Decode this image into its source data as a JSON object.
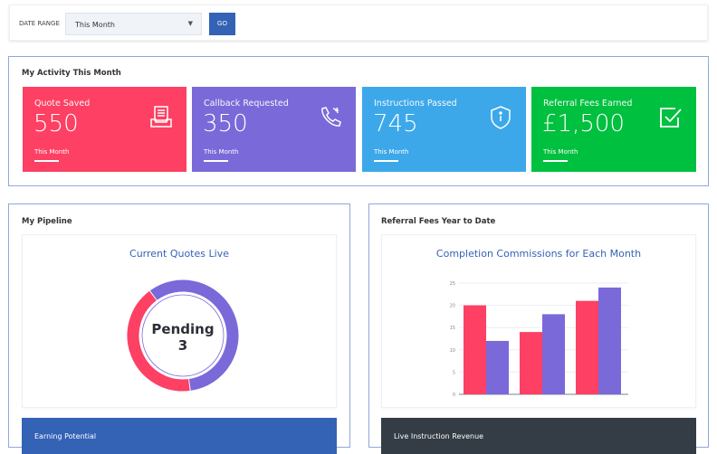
{
  "filter": {
    "label": "DATE RANGE",
    "selected": "This Month",
    "go_label": "GO"
  },
  "activity": {
    "title": "My Activity This Month",
    "cards": [
      {
        "label": "Quote Saved",
        "value": "550",
        "period": "This Month",
        "icon": "inbox-documents-icon",
        "color": "#fd4063"
      },
      {
        "label": "Callback Requested",
        "value": "350",
        "period": "This Month",
        "icon": "phone-callback-icon",
        "color": "#7a69d9"
      },
      {
        "label": "Instructions Passed",
        "value": "745",
        "period": "This Month",
        "icon": "shield-info-icon",
        "color": "#3ca8ea"
      },
      {
        "label": "Referral Fees Earned",
        "value": "£1,500",
        "period": "This Month",
        "icon": "checkbox-icon",
        "color": "#00c03f"
      }
    ]
  },
  "pipeline": {
    "title": "My Pipeline",
    "chart_title": "Current Quotes Live",
    "center_label": "Pending",
    "center_value": "3",
    "footer_label": "Earning Potential"
  },
  "referral": {
    "title": "Referral Fees Year to Date",
    "chart_title": "Completion Commissions for Each Month",
    "footer_label": "Live Instruction Revenue"
  },
  "chart_data": [
    {
      "type": "pie",
      "donut": true,
      "slices": [
        {
          "value": 58,
          "color": "#7a69d9"
        },
        {
          "value": 42,
          "color": "#fd4063"
        }
      ]
    },
    {
      "type": "bar",
      "categories": [
        "",
        "",
        ""
      ],
      "ylim": [
        0,
        25
      ],
      "yticks": [
        "0",
        "5",
        "10",
        "15",
        "20",
        "25"
      ],
      "grid": true,
      "series": [
        {
          "values": [
            20,
            14,
            21
          ],
          "color": "#fd4063"
        },
        {
          "values": [
            12,
            18,
            24
          ],
          "color": "#7a69d9"
        }
      ]
    }
  ]
}
